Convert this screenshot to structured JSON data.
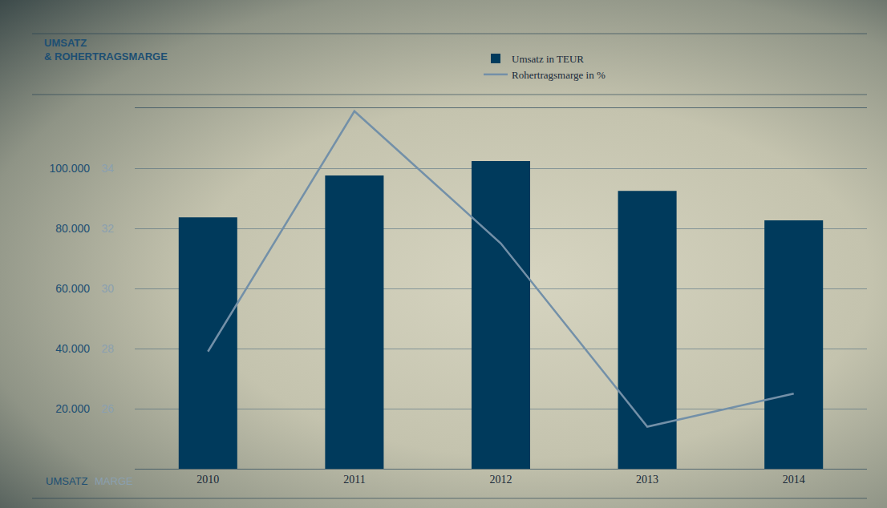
{
  "chart_data": {
    "type": "bar",
    "title": "UMSATZ\n& ROHERTRAGSMARGE",
    "categories": [
      "2010",
      "2011",
      "2012",
      "2013",
      "2014"
    ],
    "series": [
      {
        "name": "Umsatz in TEUR",
        "type": "bar",
        "color": "#003a5c",
        "values": [
          83700,
          97600,
          102400,
          92500,
          82700
        ]
      },
      {
        "name": "Rohertragsmarge in %",
        "type": "line",
        "axis": "y2",
        "color": "#7390a8",
        "values": [
          27.9,
          35.9,
          31.5,
          25.4,
          26.5
        ]
      }
    ],
    "ylabel": "UMSATZ",
    "y2label": "MARGE",
    "ylim": [
      0,
      120000
    ],
    "yticks": [
      {
        "value": 20000,
        "label": "20.000"
      },
      {
        "value": 40000,
        "label": "40.000"
      },
      {
        "value": 60000,
        "label": "60.000"
      },
      {
        "value": 80000,
        "label": "80.000"
      },
      {
        "value": 100000,
        "label": "100.000"
      }
    ],
    "y2lim": [
      24,
      36
    ],
    "y2ticks": [
      26,
      28,
      30,
      32,
      34
    ],
    "grid": true,
    "legend": "top"
  }
}
